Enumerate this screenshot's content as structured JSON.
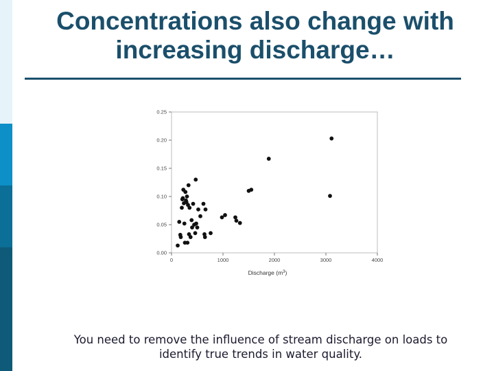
{
  "slide": {
    "title": "Concentrations also change with increasing discharge…",
    "caption": "You need to remove the influence of stream discharge on loads to identify true trends in water quality.",
    "colors": {
      "title": "#1b4f6b",
      "rule": "#1b4f6b",
      "sidebar": [
        "#e6f3f9",
        "#0d8fc7",
        "#0b6f97",
        "#0f5a78"
      ]
    }
  },
  "chart_data": {
    "type": "scatter",
    "title": "",
    "xlabel": "Discharge (m",
    "xlabel_sup": "3",
    "xlabel_end": ")",
    "ylabel": "",
    "xlim": [
      0,
      4000
    ],
    "ylim": [
      0,
      0.25
    ],
    "xticks": [
      0,
      1000,
      2000,
      3000,
      4000
    ],
    "xtick_labels": [
      "0",
      "1000",
      "2000",
      "3000",
      "4000"
    ],
    "yticks": [
      0,
      0.05,
      0.1,
      0.15,
      0.2,
      0.25
    ],
    "ytick_labels": [
      "0.00",
      "0.05",
      "0.10",
      "0.15",
      "0.20",
      "0.25"
    ],
    "grid": false,
    "series": [
      {
        "points": [
          [
            120,
            0.013
          ],
          [
            150,
            0.055
          ],
          [
            170,
            0.032
          ],
          [
            180,
            0.028
          ],
          [
            200,
            0.08
          ],
          [
            210,
            0.095
          ],
          [
            220,
            0.097
          ],
          [
            230,
            0.112
          ],
          [
            240,
            0.088
          ],
          [
            250,
            0.052
          ],
          [
            260,
            0.018
          ],
          [
            270,
            0.108
          ],
          [
            280,
            0.093
          ],
          [
            290,
            0.09
          ],
          [
            300,
            0.1
          ],
          [
            310,
            0.018
          ],
          [
            320,
            0.085
          ],
          [
            330,
            0.12
          ],
          [
            340,
            0.033
          ],
          [
            350,
            0.08
          ],
          [
            370,
            0.028
          ],
          [
            390,
            0.058
          ],
          [
            400,
            0.045
          ],
          [
            420,
            0.087
          ],
          [
            440,
            0.05
          ],
          [
            460,
            0.035
          ],
          [
            470,
            0.13
          ],
          [
            480,
            0.052
          ],
          [
            500,
            0.045
          ],
          [
            520,
            0.077
          ],
          [
            560,
            0.065
          ],
          [
            620,
            0.087
          ],
          [
            640,
            0.033
          ],
          [
            650,
            0.028
          ],
          [
            660,
            0.077
          ],
          [
            760,
            0.035
          ],
          [
            980,
            0.063
          ],
          [
            1040,
            0.067
          ],
          [
            1240,
            0.063
          ],
          [
            1260,
            0.057
          ],
          [
            1330,
            0.053
          ],
          [
            1500,
            0.11
          ],
          [
            1550,
            0.112
          ],
          [
            1890,
            0.167
          ],
          [
            3080,
            0.101
          ],
          [
            3110,
            0.203
          ]
        ]
      }
    ]
  }
}
